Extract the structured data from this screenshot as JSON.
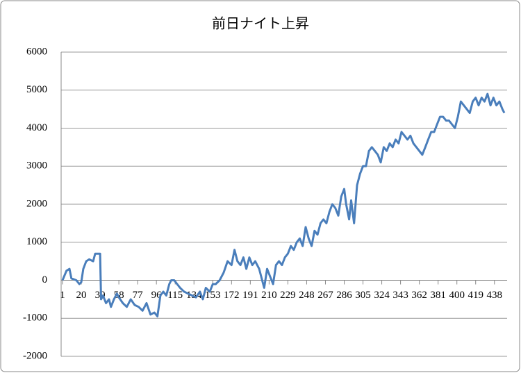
{
  "chart_data": {
    "type": "line",
    "title": "前日ナイト上昇",
    "x": [
      1,
      5,
      8,
      10,
      15,
      18,
      20,
      22,
      25,
      28,
      32,
      34,
      37,
      39,
      40,
      42,
      45,
      48,
      50,
      53,
      56,
      58,
      62,
      66,
      70,
      74,
      78,
      82,
      86,
      90,
      94,
      97,
      100,
      103,
      106,
      109,
      111,
      114,
      117,
      120,
      124,
      128,
      132,
      136,
      140,
      143,
      146,
      150,
      153,
      156,
      160,
      164,
      168,
      172,
      175,
      178,
      181,
      184,
      187,
      190,
      193,
      196,
      200,
      203,
      205,
      208,
      211,
      214,
      217,
      220,
      223,
      226,
      229,
      232,
      235,
      238,
      241,
      244,
      247,
      250,
      253,
      256,
      259,
      262,
      265,
      268,
      271,
      274,
      277,
      280,
      283,
      286,
      288,
      291,
      293,
      296,
      299,
      302,
      305,
      308,
      311,
      314,
      317,
      320,
      323,
      326,
      329,
      332,
      335,
      338,
      341,
      344,
      347,
      350,
      353,
      356,
      359,
      362,
      365,
      368,
      371,
      374,
      377,
      380,
      383,
      386,
      389,
      392,
      395,
      398,
      401,
      404,
      407,
      410,
      413,
      416,
      419,
      422,
      425,
      428,
      431,
      434,
      437,
      440,
      443,
      446,
      448
    ],
    "series": [
      {
        "color": "#4a7ebb",
        "values": [
          0,
          250,
          300,
          50,
          0,
          -100,
          -50,
          300,
          500,
          550,
          500,
          700,
          700,
          700,
          -500,
          -400,
          -600,
          -500,
          -700,
          -500,
          -350,
          -450,
          -600,
          -700,
          -500,
          -650,
          -700,
          -800,
          -600,
          -900,
          -850,
          -950,
          -400,
          -300,
          -400,
          -100,
          0,
          0,
          -100,
          -200,
          -300,
          -350,
          -400,
          -450,
          -300,
          -500,
          -200,
          -300,
          -100,
          -100,
          0,
          200,
          500,
          400,
          800,
          500,
          400,
          600,
          300,
          600,
          400,
          500,
          300,
          0,
          -200,
          300,
          100,
          -100,
          400,
          500,
          400,
          600,
          700,
          900,
          800,
          1000,
          1100,
          900,
          1400,
          1100,
          900,
          1300,
          1200,
          1500,
          1600,
          1500,
          1800,
          2000,
          1900,
          1700,
          2200,
          2400,
          2000,
          1600,
          2100,
          1500,
          2500,
          2800,
          3000,
          3000,
          3400,
          3500,
          3400,
          3300,
          3100,
          3500,
          3400,
          3600,
          3500,
          3700,
          3600,
          3900,
          3800,
          3700,
          3800,
          3600,
          3500,
          3400,
          3300,
          3500,
          3700,
          3900,
          3900,
          4100,
          4300,
          4300,
          4200,
          4200,
          4100,
          4000,
          4300,
          4700,
          4600,
          4500,
          4400,
          4700,
          4800,
          4600,
          4800,
          4700,
          4900,
          4600,
          4800,
          4600,
          4700,
          4500,
          4400
        ]
      }
    ],
    "xlim": [
      1,
      448
    ],
    "xticks": [
      1,
      20,
      39,
      58,
      77,
      96,
      115,
      134,
      153,
      172,
      191,
      210,
      229,
      248,
      267,
      286,
      305,
      324,
      343,
      362,
      381,
      400,
      419,
      438
    ],
    "ylim": [
      -2000,
      6000
    ],
    "yticks": [
      -2000,
      -1000,
      0,
      1000,
      2000,
      3000,
      4000,
      5000,
      6000
    ],
    "grid": true
  }
}
